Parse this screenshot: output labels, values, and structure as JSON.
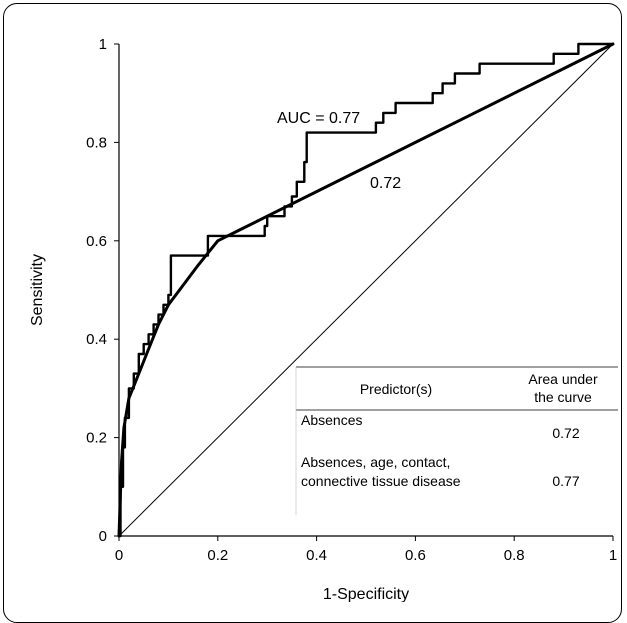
{
  "chart_data": {
    "type": "line",
    "title": "",
    "xlabel": "1-Specificity",
    "ylabel": "Sensitivity",
    "xlim": [
      0,
      1
    ],
    "ylim": [
      0,
      1
    ],
    "xticks": [
      "0",
      "0.2",
      "0.4",
      "0.6",
      "0.8",
      "1"
    ],
    "yticks": [
      "0",
      "0.2",
      "0.4",
      "0.6",
      "0.8",
      "1"
    ],
    "grid": false,
    "series": [
      {
        "name": "",
        "style": "step",
        "x": [
          0,
          0.003,
          0.003,
          0.008,
          0.008,
          0.012,
          0.012,
          0.02,
          0.02,
          0.03,
          0.03,
          0.04,
          0.04,
          0.05,
          0.05,
          0.06,
          0.06,
          0.07,
          0.07,
          0.08,
          0.08,
          0.09,
          0.09,
          0.1,
          0.1,
          0.105,
          0.105,
          0.12,
          0.12,
          0.18,
          0.18,
          0.295,
          0.295,
          0.3,
          0.3,
          0.335,
          0.335,
          0.35,
          0.35,
          0.36,
          0.36,
          0.375,
          0.375,
          0.38,
          0.38,
          0.52,
          0.52,
          0.535,
          0.535,
          0.56,
          0.56,
          0.6,
          0.6,
          0.635,
          0.635,
          0.655,
          0.655,
          0.67,
          0.67,
          0.68,
          0.68,
          0.69,
          0.69,
          0.73,
          0.73,
          0.76,
          0.76,
          0.88,
          0.88,
          0.93,
          0.93,
          1
        ],
        "y": [
          0,
          0,
          0.1,
          0.1,
          0.18,
          0.18,
          0.24,
          0.24,
          0.3,
          0.3,
          0.33,
          0.33,
          0.37,
          0.37,
          0.39,
          0.39,
          0.41,
          0.41,
          0.43,
          0.43,
          0.45,
          0.45,
          0.47,
          0.47,
          0.49,
          0.49,
          0.57,
          0.57,
          0.57,
          0.57,
          0.61,
          0.61,
          0.63,
          0.63,
          0.65,
          0.65,
          0.67,
          0.67,
          0.69,
          0.69,
          0.72,
          0.72,
          0.76,
          0.76,
          0.82,
          0.82,
          0.84,
          0.84,
          0.86,
          0.86,
          0.88,
          0.88,
          0.88,
          0.88,
          0.9,
          0.9,
          0.92,
          0.92,
          0.92,
          0.92,
          0.94,
          0.94,
          0.94,
          0.94,
          0.96,
          0.96,
          0.96,
          0.96,
          0.98,
          0.98,
          1,
          1
        ]
      },
      {
        "name": "",
        "style": "smooth",
        "x": [
          0,
          0.005,
          0.01,
          0.02,
          0.04,
          0.06,
          0.08,
          0.1,
          0.13,
          0.16,
          0.2,
          0.25,
          0.3,
          0.4,
          0.5,
          0.6,
          0.7,
          0.8,
          0.9,
          1
        ],
        "y": [
          0,
          0.15,
          0.22,
          0.28,
          0.33,
          0.38,
          0.43,
          0.47,
          0.51,
          0.55,
          0.6,
          0.625,
          0.65,
          0.7,
          0.75,
          0.8,
          0.85,
          0.9,
          0.95,
          1
        ]
      },
      {
        "name": "",
        "style": "diagonal",
        "x": [
          0,
          1
        ],
        "y": [
          0,
          1
        ]
      }
    ],
    "annotations": [
      {
        "text": "AUC = 0.77",
        "x": 0.32,
        "y": 0.835
      },
      {
        "text": "0.72",
        "x": 0.51,
        "y": 0.705
      }
    ],
    "table": {
      "headers": [
        "Predictor(s)",
        "Area under",
        "the curve"
      ],
      "rows": [
        {
          "predictor_lines": [
            "Absences"
          ],
          "value": "0.72"
        },
        {
          "predictor_lines": [
            "Absences, age, contact,",
            "connective tissue disease"
          ],
          "value": "0.77"
        }
      ]
    }
  }
}
